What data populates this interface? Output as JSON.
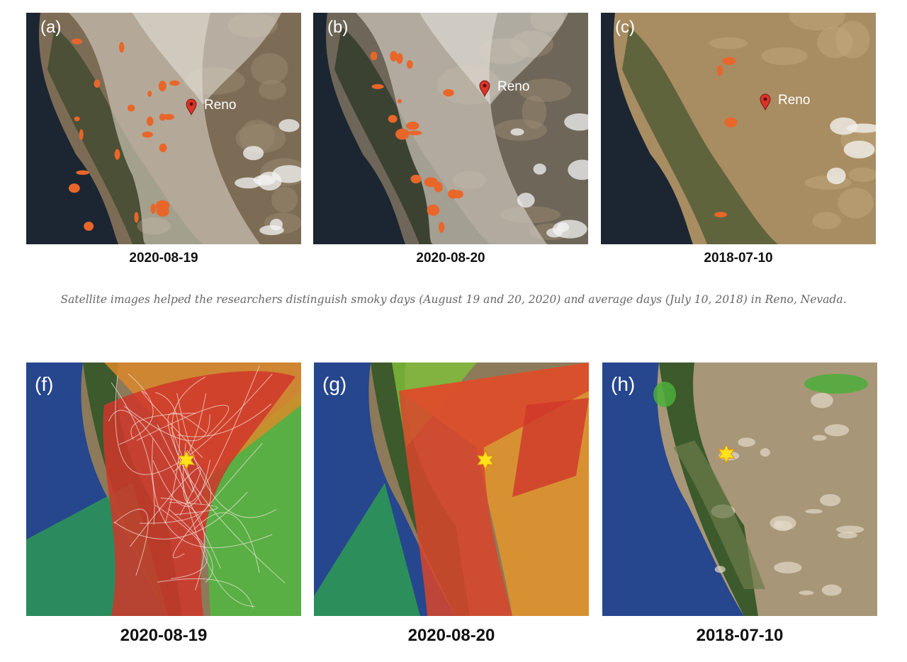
{
  "top_panels": [
    {
      "label": "(a)",
      "marker": "Reno",
      "date": "2020-08-19"
    },
    {
      "label": "(b)",
      "marker": "Reno",
      "date": "2020-08-20"
    },
    {
      "label": "(c)",
      "marker": "Reno",
      "date": "2018-07-10"
    }
  ],
  "caption": "Satellite images helped the researchers distinguish smoky days (August 19 and 20, 2020) and average days (July 10, 2018) in Reno, Nevada.",
  "bottom_panels": [
    {
      "label": "(f)",
      "date": "2020-08-19"
    },
    {
      "label": "(g)",
      "date": "2020-08-20"
    },
    {
      "label": "(h)",
      "date": "2018-07-10"
    }
  ]
}
